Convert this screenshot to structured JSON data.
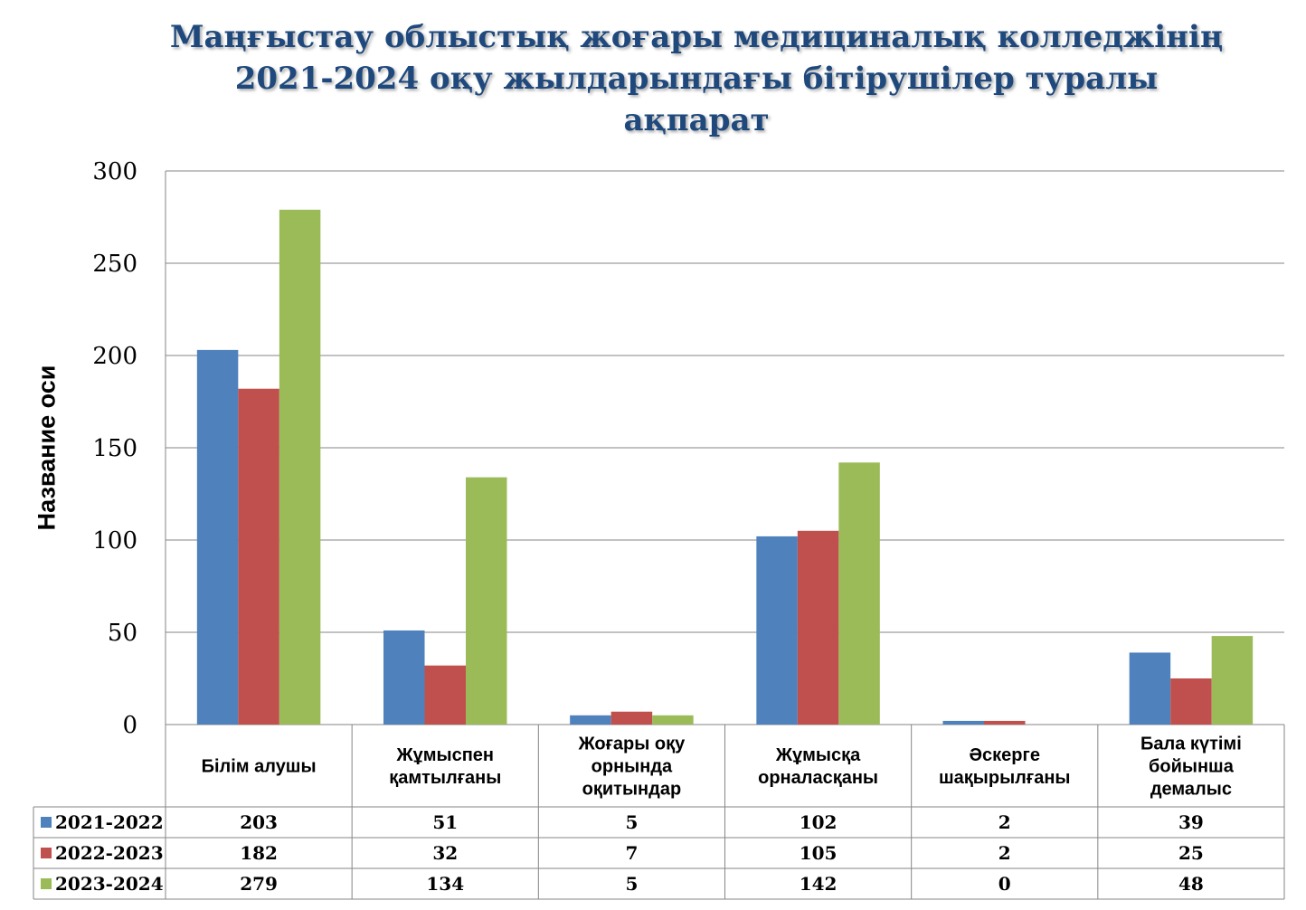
{
  "title": {
    "line1": "Маңғыстау облыстық жоғары медициналық колледжінің",
    "line2": "2021-2024 оқу жылдарындағы бітірушілер туралы",
    "line3": "ақпарат"
  },
  "chart_data": {
    "type": "bar",
    "ylabel": "Название оси",
    "ylim": [
      0,
      300
    ],
    "yticks": [
      0,
      50,
      100,
      150,
      200,
      250,
      300
    ],
    "grid": true,
    "legend": "data-table-left",
    "categories": [
      [
        "Білім алушы"
      ],
      [
        "Жұмыспен",
        "қамтылғаны"
      ],
      [
        "Жоғары оқу",
        "орнында",
        "оқитындар"
      ],
      [
        "Жұмысқа",
        "орналасқаны"
      ],
      [
        "Әскерге",
        "шақырылғаны"
      ],
      [
        "Бала күтімі",
        "бойынша",
        "демалыс"
      ]
    ],
    "series": [
      {
        "name": "2021-2022",
        "color": "#4F81BD",
        "values": [
          203,
          51,
          5,
          102,
          2,
          39
        ]
      },
      {
        "name": "2022-2023",
        "color": "#C0504D",
        "values": [
          182,
          32,
          7,
          105,
          2,
          25
        ]
      },
      {
        "name": "2023-2024",
        "color": "#9BBB59",
        "values": [
          279,
          134,
          5,
          142,
          0,
          48
        ]
      }
    ]
  }
}
